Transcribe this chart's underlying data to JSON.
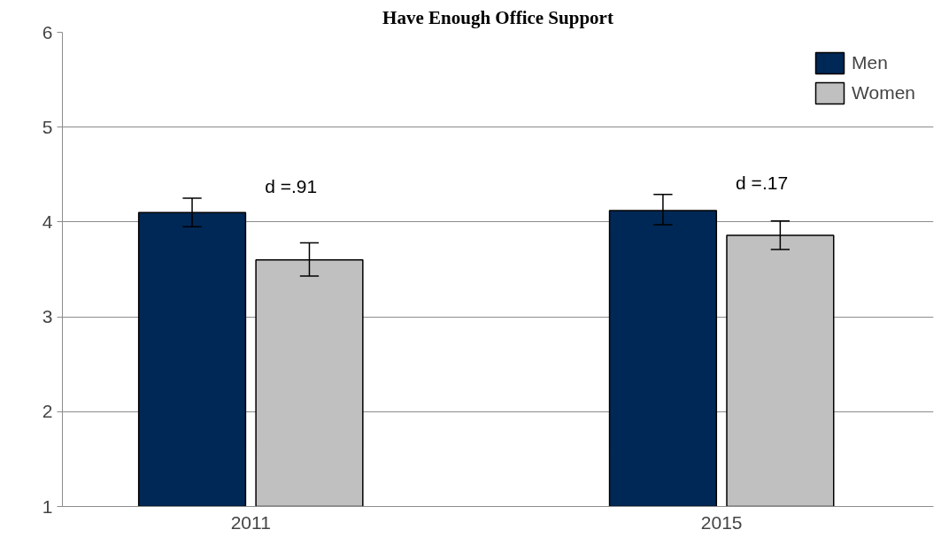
{
  "chart_data": {
    "type": "bar",
    "title": "Have Enough Office Support",
    "categories": [
      "2011",
      "2015"
    ],
    "series": [
      {
        "name": "Men",
        "color": "#002856",
        "values": [
          4.1,
          4.12
        ],
        "errors": [
          [
            3.95,
            4.25
          ],
          [
            3.97,
            4.29
          ]
        ]
      },
      {
        "name": "Women",
        "color": "#c0c0c0",
        "values": [
          3.6,
          3.86
        ],
        "errors": [
          [
            3.43,
            3.78
          ],
          [
            3.71,
            4.01
          ]
        ]
      }
    ],
    "annotations": [
      "d =.91",
      "d =.17"
    ],
    "ylim": [
      1,
      6
    ],
    "yticks": [
      1,
      2,
      3,
      4,
      5,
      6
    ],
    "grid": "y",
    "legend": "top right"
  }
}
